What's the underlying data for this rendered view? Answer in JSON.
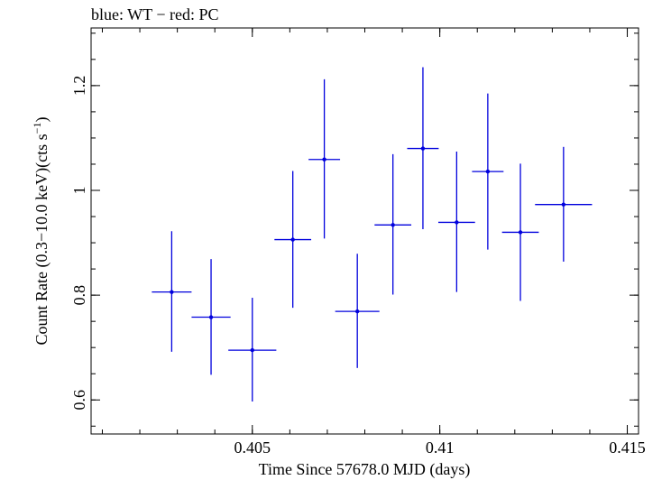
{
  "header": "blue: WT − red: PC",
  "chart_data": {
    "type": "scatter",
    "title": "",
    "xlabel": "Time Since 57678.0 MJD (days)",
    "ylabel_main": "Count Rate (0.3−10.0 keV)(cts s",
    "ylabel_sup": "−1",
    "ylabel_end": ")",
    "xlim": [
      0.4007,
      0.4153
    ],
    "ylim": [
      0.535,
      1.31
    ],
    "x_ticks": [
      {
        "value": 0.405,
        "label": "0.405"
      },
      {
        "value": 0.41,
        "label": "0.41"
      },
      {
        "value": 0.415,
        "label": "0.415"
      }
    ],
    "x_minor_step": 0.001,
    "y_ticks": [
      {
        "value": 0.6,
        "label": "0.6"
      },
      {
        "value": 0.8,
        "label": "0.8"
      },
      {
        "value": 1.0,
        "label": "1"
      },
      {
        "value": 1.2,
        "label": "1.2"
      }
    ],
    "y_minor_step": 0.05,
    "grid": false,
    "series": [
      {
        "color": "#0000dd",
        "points": [
          {
            "x": 0.40285,
            "xerr": 0.00053,
            "y": 0.806,
            "ylo": 0.692,
            "yhi": 0.922
          },
          {
            "x": 0.4039,
            "xerr": 0.00052,
            "y": 0.758,
            "ylo": 0.648,
            "yhi": 0.869
          },
          {
            "x": 0.405,
            "xerr": 0.00064,
            "y": 0.695,
            "ylo": 0.597,
            "yhi": 0.795
          },
          {
            "x": 0.40608,
            "xerr": 0.00049,
            "y": 0.906,
            "ylo": 0.776,
            "yhi": 1.037
          },
          {
            "x": 0.40692,
            "xerr": 0.00042,
            "y": 1.059,
            "ylo": 0.908,
            "yhi": 1.212
          },
          {
            "x": 0.4078,
            "xerr": 0.00059,
            "y": 0.769,
            "ylo": 0.661,
            "yhi": 0.879
          },
          {
            "x": 0.40875,
            "xerr": 0.00049,
            "y": 0.934,
            "ylo": 0.801,
            "yhi": 1.069
          },
          {
            "x": 0.40955,
            "xerr": 0.00042,
            "y": 1.08,
            "ylo": 0.926,
            "yhi": 1.235
          },
          {
            "x": 0.41045,
            "xerr": 0.00049,
            "y": 0.939,
            "ylo": 0.806,
            "yhi": 1.074
          },
          {
            "x": 0.41128,
            "xerr": 0.00042,
            "y": 1.036,
            "ylo": 0.887,
            "yhi": 1.185
          },
          {
            "x": 0.41215,
            "xerr": 0.00049,
            "y": 0.92,
            "ylo": 0.789,
            "yhi": 1.051
          },
          {
            "x": 0.4133,
            "xerr": 0.00076,
            "y": 0.973,
            "ylo": 0.864,
            "yhi": 1.083
          }
        ]
      }
    ]
  }
}
